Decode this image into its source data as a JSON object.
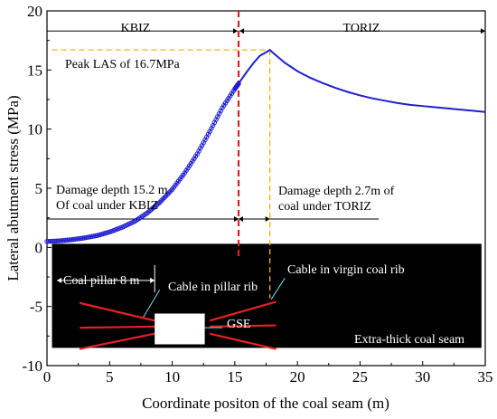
{
  "chart_data": {
    "type": "scatter",
    "xlabel": "Coordinate positon of the coal seam (m)",
    "ylabel": "Lateral abutment stress (MPa)",
    "xlim": [
      0,
      35
    ],
    "ylim": [
      -10,
      20
    ],
    "x_ticks": [
      0,
      5,
      10,
      15,
      20,
      25,
      30,
      35
    ],
    "y_ticks": [
      -10,
      -5,
      0,
      5,
      10,
      15,
      20
    ],
    "grid": false,
    "series": [
      {
        "style": "blue open circles then blue line",
        "color": "#1f1fd1",
        "points": [
          [
            0,
            0.5
          ],
          [
            1,
            0.55
          ],
          [
            2,
            0.65
          ],
          [
            3,
            0.8
          ],
          [
            4,
            1.0
          ],
          [
            5,
            1.3
          ],
          [
            6,
            1.7
          ],
          [
            7,
            2.2
          ],
          [
            8,
            2.9
          ],
          [
            9,
            3.8
          ],
          [
            10,
            4.9
          ],
          [
            11,
            6.3
          ],
          [
            12,
            7.9
          ],
          [
            13,
            9.8
          ],
          [
            14,
            11.8
          ],
          [
            15,
            13.4
          ],
          [
            15.3,
            13.85
          ],
          [
            15.6,
            14.3
          ],
          [
            16,
            14.9
          ],
          [
            16.5,
            15.6
          ],
          [
            17,
            16.2
          ],
          [
            17.5,
            16.5
          ],
          [
            17.8,
            16.7
          ],
          [
            18,
            16.5
          ],
          [
            19,
            15.6
          ],
          [
            20,
            14.9
          ],
          [
            21,
            14.35
          ],
          [
            22,
            13.9
          ],
          [
            23,
            13.5
          ],
          [
            24,
            13.15
          ],
          [
            25,
            12.85
          ],
          [
            26,
            12.6
          ],
          [
            27,
            12.4
          ],
          [
            28,
            12.2
          ],
          [
            29,
            12.05
          ],
          [
            30,
            11.95
          ],
          [
            31,
            11.85
          ],
          [
            32,
            11.75
          ],
          [
            33,
            11.65
          ],
          [
            34,
            11.55
          ],
          [
            35,
            11.45
          ]
        ]
      }
    ],
    "boundary_x": 15.3,
    "peak": {
      "x": 17.8,
      "y": 16.7
    },
    "zones": {
      "left": "KBIZ",
      "right": "TORIZ"
    },
    "annotations": {
      "peak": "Peak LAS of 16.7MPa",
      "damage_kbiz_line1": "Damage depth 15.2  m",
      "damage_kbiz_line2": "Of coal under KBIZ",
      "damage_toriz_line1": "Damage depth 2.7m  of",
      "damage_toriz_line2": "coal under TORIZ",
      "coal_pillar": "Coal pillar 8 m",
      "cable_pillar": "Cable in pillar rib",
      "cable_virgin": "Cable in virgin coal rib",
      "gse": "GSE",
      "seam": "Extra-thick coal seam"
    },
    "colors": {
      "curve": "#1f1fd1",
      "boundary": "#e02020",
      "peak_guide": "#f0b400",
      "cable": "#e82020",
      "seam": "#000000",
      "gse": "#ffffff"
    }
  }
}
